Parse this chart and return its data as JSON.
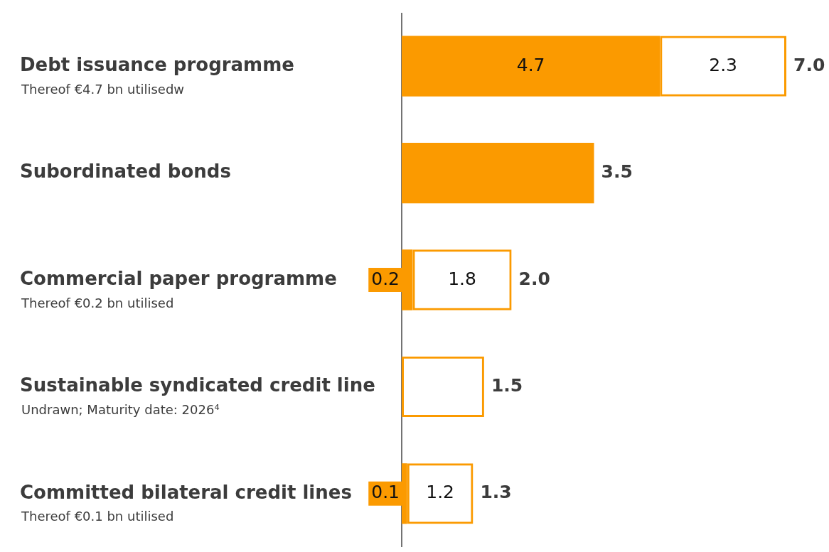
{
  "chart_data": {
    "type": "bar",
    "orientation": "horizontal",
    "stacked": true,
    "categories": [
      "Debt issuance programme\nThereof €4.7 bn utilisedw",
      "Subordinated bonds",
      "Commercial paper programme\nThereof €0.2 bn utilised",
      "Sustainable syndicated credit line\nUndrawn; Maturity date: 2026⁴",
      "Committed bilateral credit lines\nThereof €0.1 bn utilised"
    ],
    "series": [
      {
        "color": "#fb9a00",
        "values": [
          4.7,
          3.5,
          0.2,
          null,
          0.1
        ],
        "value_labels": [
          "4.7",
          null,
          "0.2",
          null,
          "0.1"
        ]
      },
      {
        "color": "#fb9a00",
        "values": [
          2.3,
          null,
          1.8,
          1.5,
          1.2
        ],
        "value_labels": [
          "2.3",
          null,
          "1.8",
          null,
          "1.2"
        ]
      }
    ],
    "totals": [
      "7.0",
      "3.5",
      "2.0",
      "1.5",
      "1.3"
    ],
    "xlim": [
      0,
      7.0
    ],
    "grid": false,
    "legend": false
  }
}
